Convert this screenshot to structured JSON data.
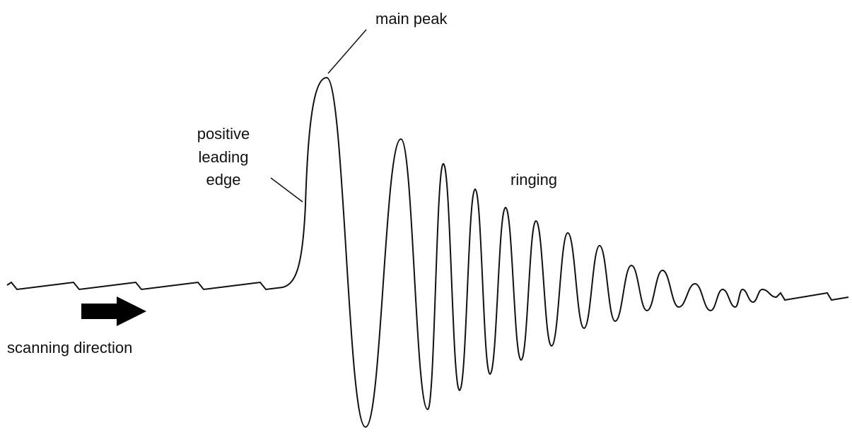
{
  "labels": {
    "main_peak": "main peak",
    "leading_edge": [
      "positive",
      "leading",
      "edge"
    ],
    "ringing": "ringing",
    "scanning_direction": "scanning direction"
  }
}
